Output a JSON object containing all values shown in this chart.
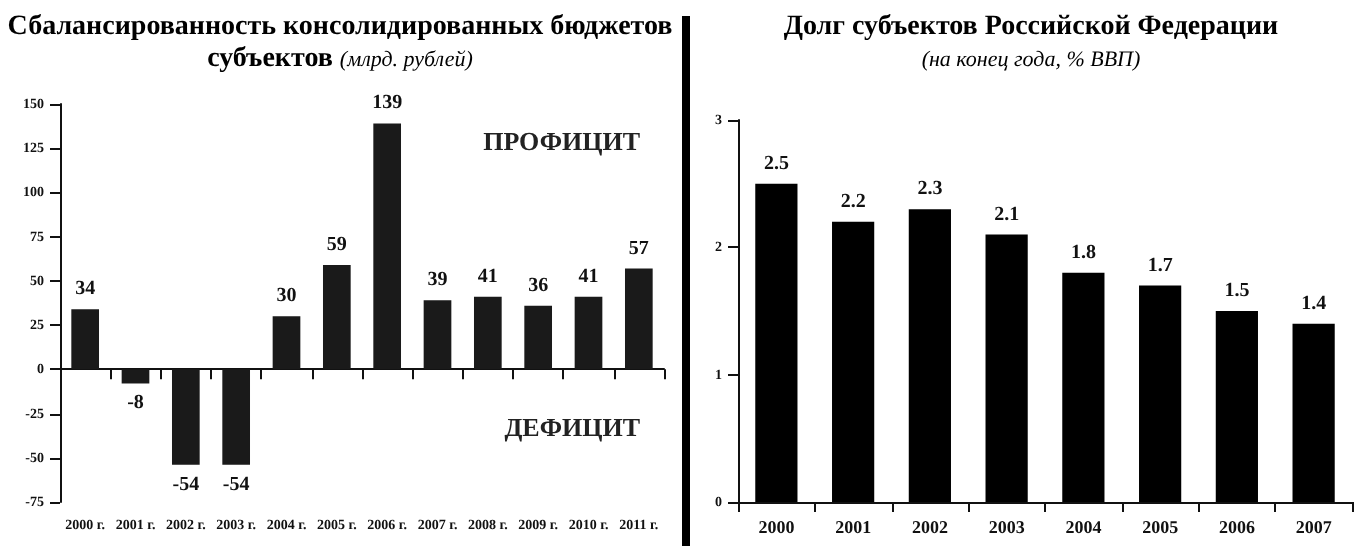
{
  "chart_data": [
    {
      "type": "bar",
      "title": "Сбалансированность консолидированных бюджетов субъектов",
      "subtitle": "(млрд. рублей)",
      "categories": [
        "2000 г.",
        "2001 г.",
        "2002 г.",
        "2003 г.",
        "2004 г.",
        "2005 г.",
        "2006 г.",
        "2007 г.",
        "2008 г.",
        "2009 г.",
        "2010 г.",
        "2011 г."
      ],
      "values": [
        34,
        -8,
        -54,
        -54,
        30,
        59,
        139,
        39,
        41,
        36,
        41,
        57
      ],
      "color": "#1a1a1a",
      "ylim": [
        -75,
        150
      ],
      "yticks": [
        -75,
        -50,
        -25,
        0,
        25,
        50,
        75,
        100,
        125,
        150
      ],
      "data_labels": true,
      "annotations": [
        "ПРОФИЦИТ",
        "ДЕФИЦИТ"
      ]
    },
    {
      "type": "bar",
      "title": "Долг субъектов Российской Федерации",
      "subtitle": "(на конец года, % ВВП)",
      "categories": [
        "2000",
        "2001",
        "2002",
        "2003",
        "2004",
        "2005",
        "2006",
        "2007"
      ],
      "values": [
        2.5,
        2.2,
        2.3,
        2.1,
        1.8,
        1.7,
        1.5,
        1.4
      ],
      "color": "#000000",
      "ylim": [
        0,
        3
      ],
      "yticks": [
        0,
        1,
        2,
        3
      ],
      "data_labels": true
    }
  ]
}
